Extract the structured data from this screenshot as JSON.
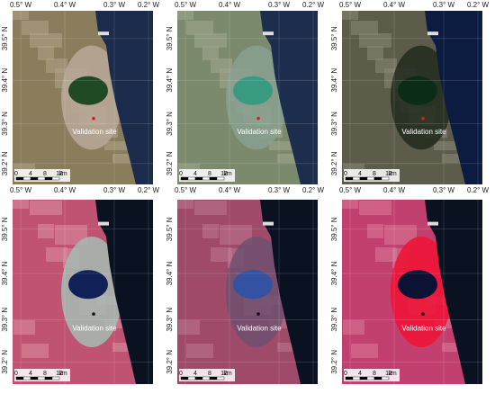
{
  "longitude_labels": [
    "0.5° W",
    "0.4° W",
    "0.3° W",
    "0.2° W"
  ],
  "latitude_labels": [
    "39.5° N",
    "39.4° N",
    "39.3° N",
    "39.2° N"
  ],
  "site_label": "Validation site",
  "scale_bar": {
    "ticks": [
      "0",
      "4",
      "8",
      "12"
    ],
    "unit": "km"
  }
}
